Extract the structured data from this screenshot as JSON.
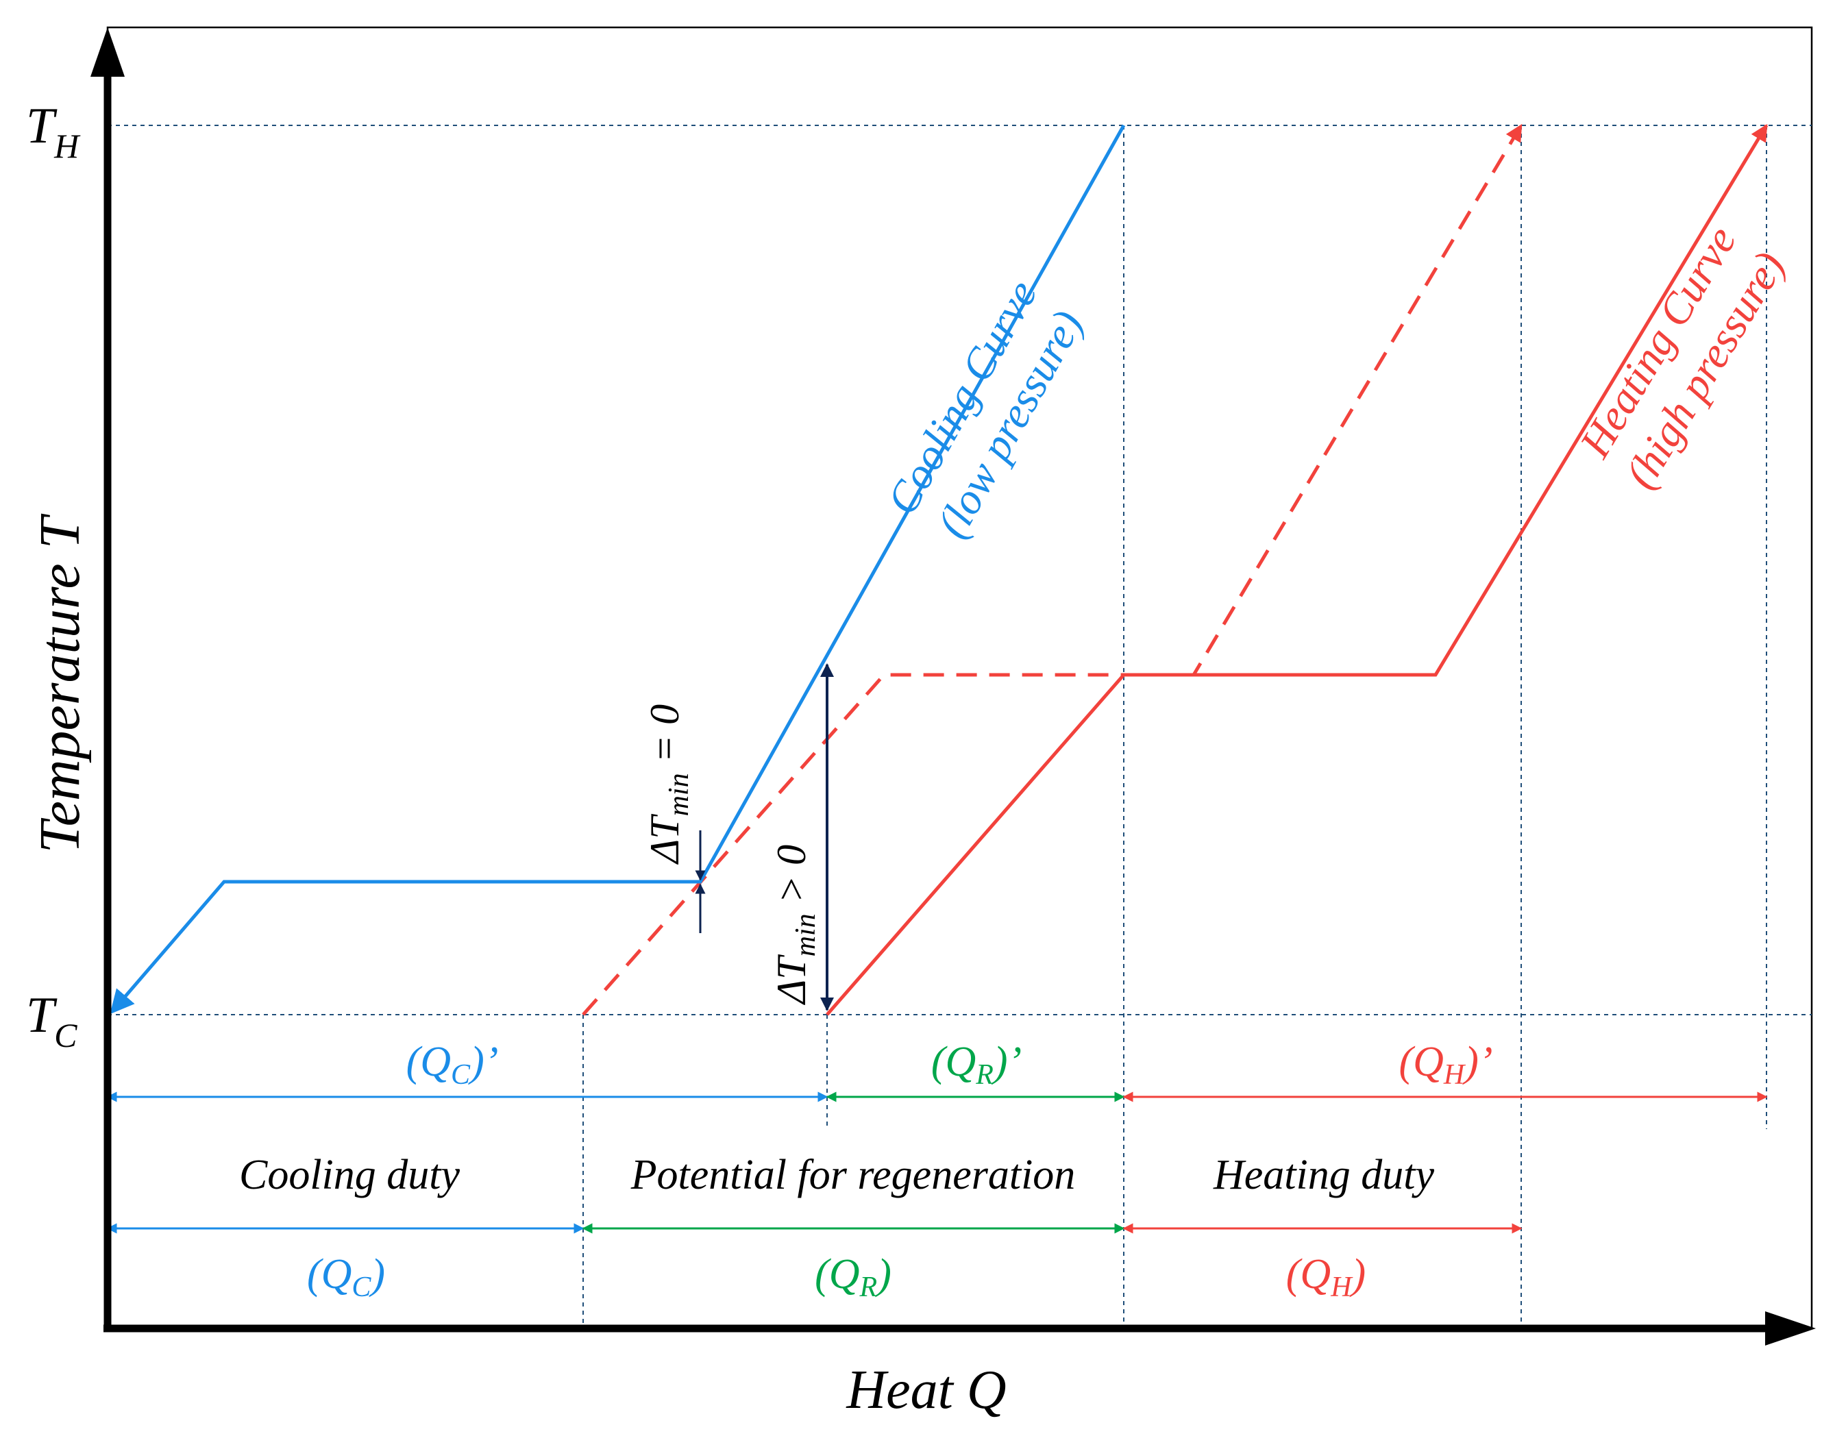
{
  "colors": {
    "cooling": "#1a8ce8",
    "heating": "#f2423c",
    "regeneration": "#00a64a",
    "axis": "#000000",
    "guide": "#1f4e79",
    "delta_arrow": "#0d2350"
  },
  "axes": {
    "y_title": "Temperature T",
    "x_title": "Heat Q",
    "t_hot": {
      "base": "T",
      "sub": "H"
    },
    "t_cold": {
      "base": "T",
      "sub": "C"
    }
  },
  "curves": {
    "cooling": {
      "line1": "Cooling Curve",
      "line2": "(low pressure)"
    },
    "heating": {
      "line1": "Heating Curve",
      "line2": "(high pressure)"
    }
  },
  "delta_t": {
    "zero": {
      "base": "ΔT",
      "sub": "min",
      "rel": " = 0"
    },
    "positive": {
      "base": "ΔT",
      "sub": "min",
      "rel": " > 0"
    }
  },
  "duties": {
    "primed": [
      {
        "base": "(Q",
        "sub": "C",
        "tail": ")’"
      },
      {
        "base": "(Q",
        "sub": "R",
        "tail": ")’"
      },
      {
        "base": "(Q",
        "sub": "H",
        "tail": ")’"
      }
    ],
    "labels": {
      "cooling": "Cooling duty",
      "regeneration": "Potential for regeneration",
      "heating": "Heating duty"
    },
    "unprimed": [
      {
        "base": "(Q",
        "sub": "C",
        "tail": ")"
      },
      {
        "base": "(Q",
        "sub": "R",
        "tail": ")"
      },
      {
        "base": "(Q",
        "sub": "H",
        "tail": ")"
      }
    ]
  }
}
